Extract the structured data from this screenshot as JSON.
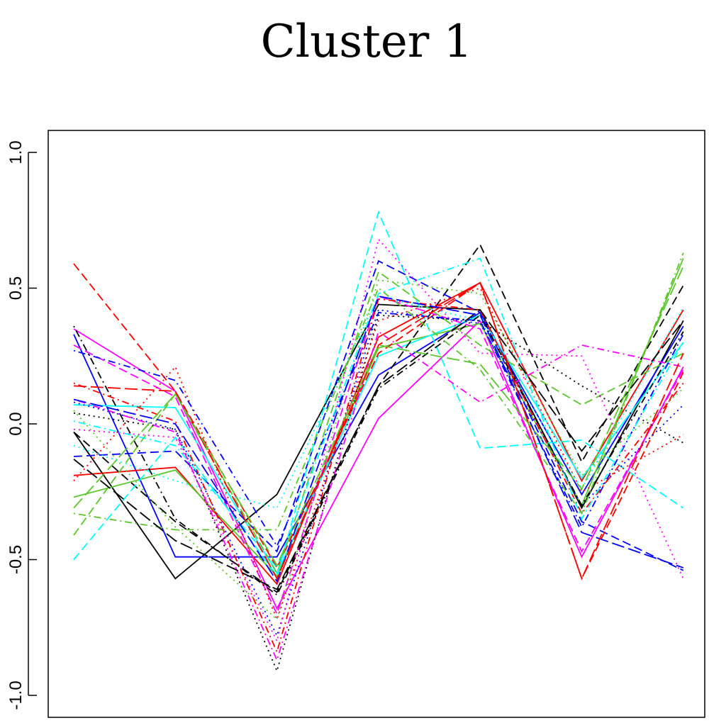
{
  "chart_data": {
    "type": "line",
    "title": "Cluster 1",
    "xlabel": "",
    "ylabel": "",
    "ylim": [
      -1.0,
      1.0
    ],
    "y_ticks": [
      "-1.0",
      "-0.5",
      "0.0",
      "0.5",
      "1.0"
    ],
    "y_tick_values": [
      -1.0,
      -0.5,
      0.0,
      0.5,
      1.0
    ],
    "x": [
      1,
      2,
      3,
      4,
      5,
      6,
      7
    ],
    "grid": false,
    "legend": "none",
    "series": [
      {
        "color": "#000000",
        "dash": "solid",
        "values": [
          -0.03,
          -0.57,
          -0.26,
          0.44,
          0.42,
          -0.31,
          0.38
        ]
      },
      {
        "color": "#0000ff",
        "dash": "solid",
        "values": [
          0.33,
          -0.49,
          -0.49,
          0.18,
          0.41,
          -0.26,
          0.36
        ]
      },
      {
        "color": "#ff0000",
        "dash": "solid",
        "values": [
          -0.19,
          -0.16,
          -0.59,
          0.32,
          0.52,
          -0.21,
          0.42
        ]
      },
      {
        "color": "#ff00ff",
        "dash": "solid",
        "values": [
          0.35,
          0.12,
          -0.68,
          0.02,
          0.38,
          -0.49,
          0.21
        ]
      },
      {
        "color": "#5ac62b",
        "dash": "solid",
        "values": [
          -0.27,
          -0.17,
          -0.56,
          0.28,
          0.37,
          -0.3,
          0.61
        ]
      },
      {
        "color": "#00ffff",
        "dash": "solid",
        "values": [
          0.07,
          0.06,
          -0.55,
          0.25,
          0.4,
          -0.2,
          0.3
        ]
      },
      {
        "color": "#000000",
        "dash": "dashed",
        "values": [
          -0.03,
          -0.36,
          -0.62,
          0.14,
          0.66,
          -0.14,
          0.51
        ]
      },
      {
        "color": "#0000ff",
        "dash": "dashed",
        "values": [
          -0.12,
          -0.1,
          -0.47,
          0.6,
          0.41,
          -0.36,
          -0.54
        ]
      },
      {
        "color": "#ff0000",
        "dash": "dashed",
        "values": [
          0.59,
          0.12,
          -0.53,
          0.26,
          0.52,
          -0.57,
          0.19
        ]
      },
      {
        "color": "#ff00ff",
        "dash": "dashed",
        "values": [
          0.29,
          0.1,
          -0.7,
          0.47,
          0.35,
          -0.47,
          0.2
        ]
      },
      {
        "color": "#5ac62b",
        "dash": "dashed",
        "values": [
          -0.41,
          0.11,
          -0.55,
          0.56,
          0.29,
          0.07,
          0.26
        ]
      },
      {
        "color": "#00ffff",
        "dash": "dashed",
        "values": [
          -0.5,
          -0.05,
          -0.56,
          0.78,
          -0.09,
          -0.06,
          -0.31
        ]
      },
      {
        "color": "#000000",
        "dash": "dotted",
        "values": [
          0.04,
          -0.02,
          -0.91,
          0.4,
          0.38,
          0.14,
          -0.07
        ]
      },
      {
        "color": "#0000ff",
        "dash": "dotted",
        "values": [
          0.08,
          -0.02,
          -0.78,
          0.42,
          0.37,
          -0.3,
          0.07
        ]
      },
      {
        "color": "#ff0000",
        "dash": "dotted",
        "values": [
          -0.21,
          0.21,
          -0.72,
          0.38,
          0.5,
          -0.25,
          -0.04
        ]
      },
      {
        "color": "#ff00ff",
        "dash": "dotted",
        "values": [
          -0.02,
          -0.05,
          -0.8,
          0.68,
          0.26,
          0.25,
          -0.57
        ]
      },
      {
        "color": "#5ac62b",
        "dash": "dotted",
        "values": [
          0.05,
          -0.38,
          -0.72,
          0.53,
          0.48,
          -0.19,
          0.13
        ]
      },
      {
        "color": "#00ffff",
        "dash": "dotted",
        "values": [
          -0.08,
          -0.21,
          -0.31,
          0.47,
          0.38,
          -0.24,
          0.43
        ]
      },
      {
        "color": "#000000",
        "dash": "dotdash",
        "values": [
          0.36,
          -0.35,
          -0.63,
          0.13,
          0.4,
          -0.3,
          0.34
        ]
      },
      {
        "color": "#0000ff",
        "dash": "dotdash",
        "values": [
          0.27,
          0.16,
          -0.45,
          0.41,
          0.38,
          -0.38,
          0.33
        ]
      },
      {
        "color": "#ff0000",
        "dash": "dotdash",
        "values": [
          0.15,
          0.01,
          -0.84,
          0.46,
          0.42,
          -0.33,
          0.15
        ]
      },
      {
        "color": "#ff00ff",
        "dash": "dotdash",
        "values": [
          0.09,
          -0.03,
          -0.87,
          0.34,
          0.08,
          0.29,
          0.21
        ]
      },
      {
        "color": "#5ac62b",
        "dash": "dotdash",
        "values": [
          -0.33,
          -0.39,
          -0.39,
          0.5,
          0.2,
          -0.33,
          0.63
        ]
      },
      {
        "color": "#00ffff",
        "dash": "dotdash",
        "values": [
          0.01,
          -0.08,
          -0.53,
          0.48,
          0.61,
          -0.35,
          0.3
        ]
      },
      {
        "color": "#000000",
        "dash": "longdash",
        "values": [
          -0.13,
          -0.43,
          -0.61,
          0.14,
          0.42,
          -0.1,
          0.38
        ]
      },
      {
        "color": "#0000ff",
        "dash": "longdash",
        "values": [
          0.09,
          0.0,
          -0.58,
          0.47,
          0.4,
          -0.4,
          -0.53
        ]
      },
      {
        "color": "#ff0000",
        "dash": "longdash",
        "values": [
          0.14,
          0.12,
          -0.57,
          0.29,
          0.52,
          -0.57,
          0.26
        ]
      },
      {
        "color": "#5ac62b",
        "dash": "longdash",
        "values": [
          -0.31,
          0.11,
          -0.52,
          0.29,
          0.22,
          -0.24,
          0.58
        ]
      }
    ]
  }
}
